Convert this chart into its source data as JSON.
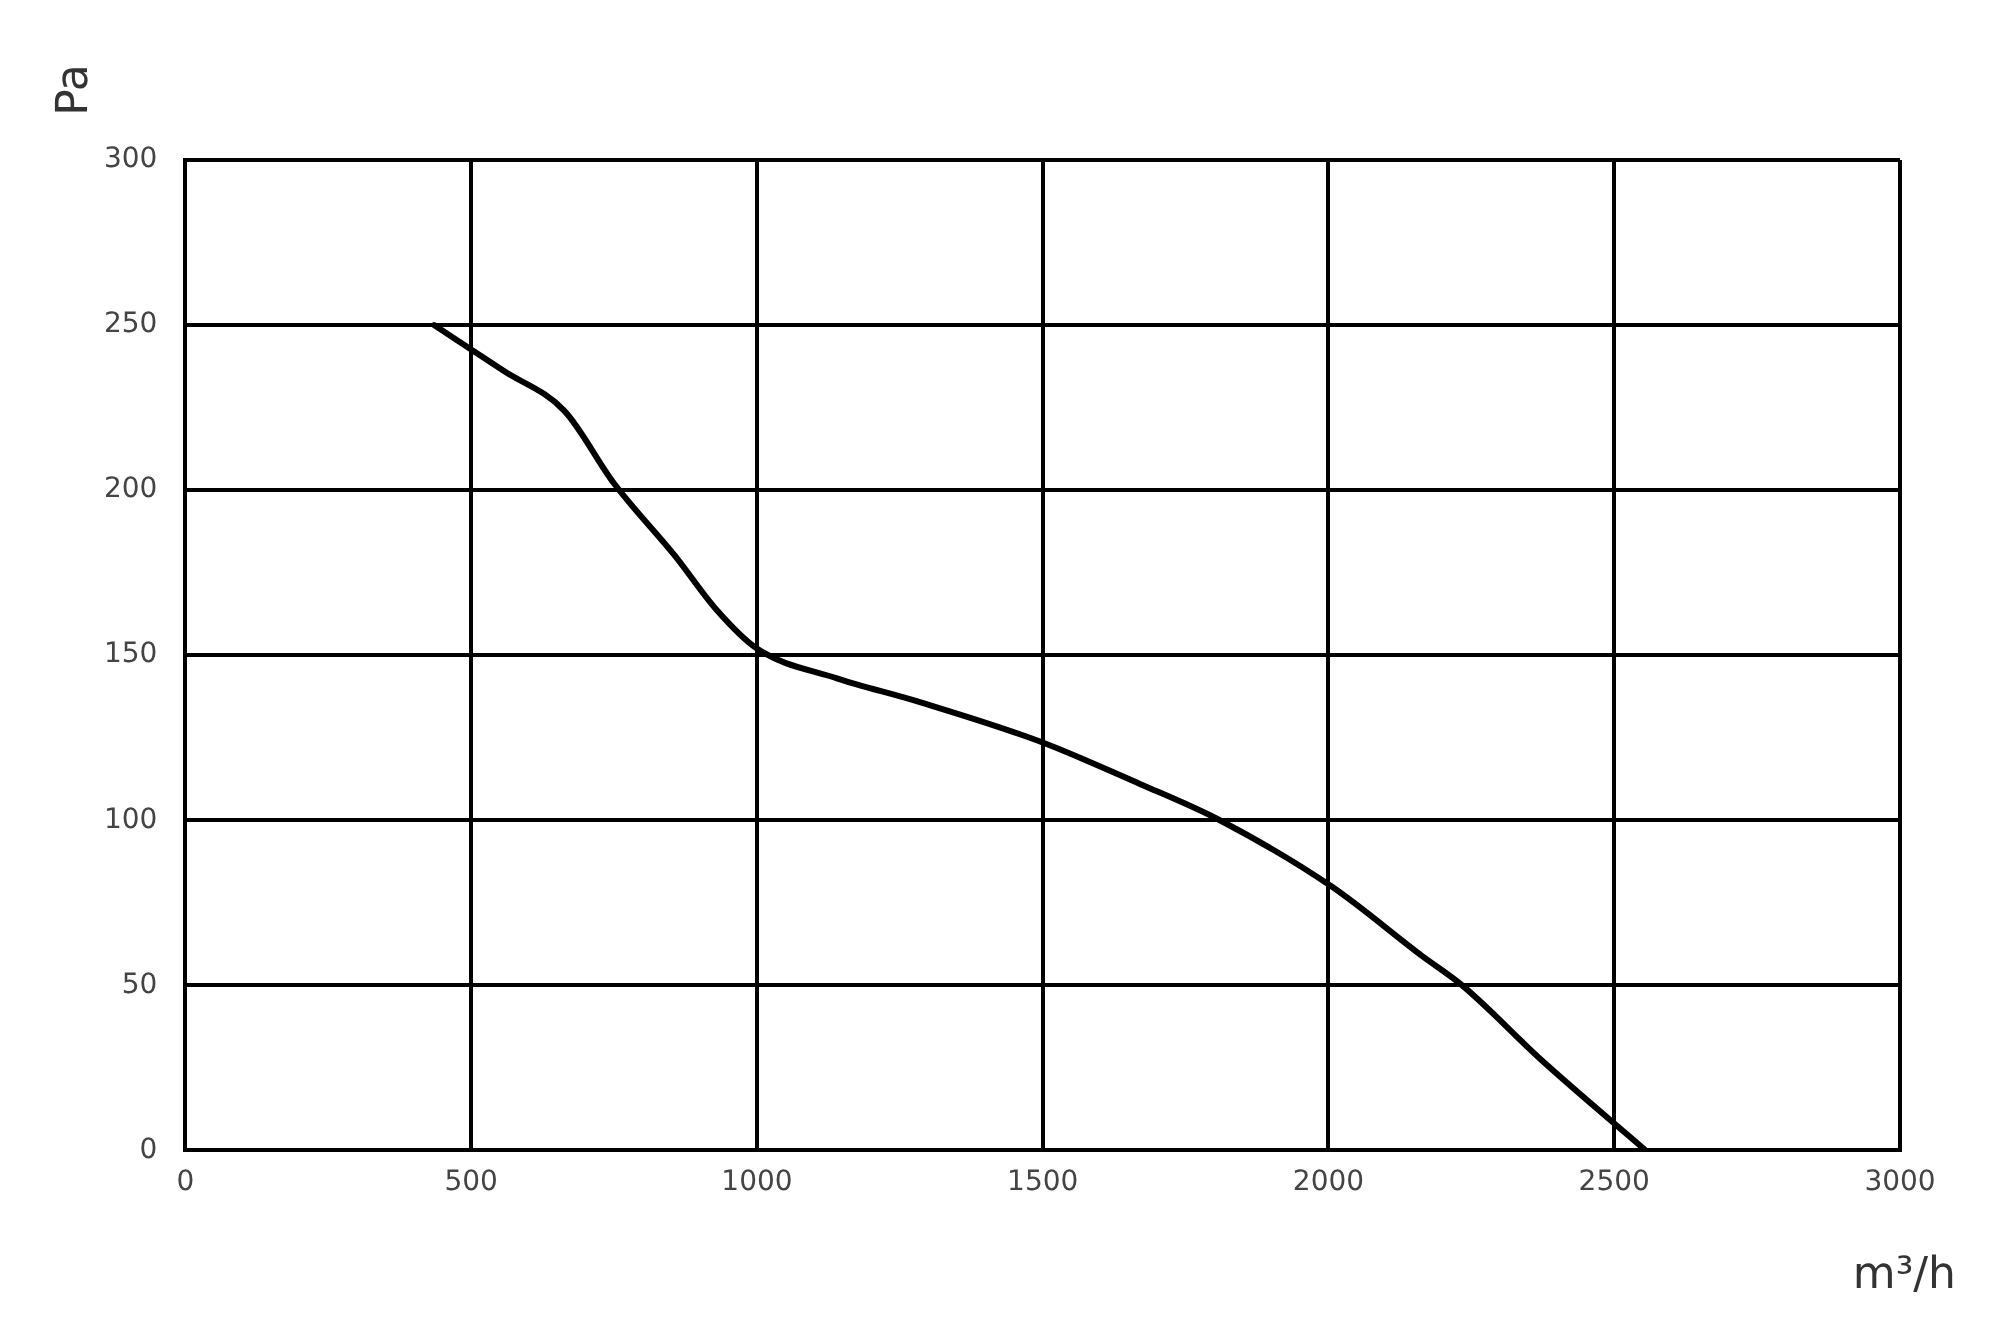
{
  "chart_data": {
    "type": "line",
    "xlabel": "m³/h",
    "ylabel": "Pa",
    "x": [
      435,
      558,
      663,
      750,
      857,
      928,
      1000,
      1140,
      1281,
      1493,
      1670,
      1810,
      2005,
      2163,
      2234,
      2375,
      2555
    ],
    "series": [
      {
        "color": "#000000",
        "values": [
          250,
          236,
          224,
          202,
          180,
          164,
          152,
          143,
          136,
          124,
          111,
          100,
          80,
          59,
          50,
          27,
          0
        ]
      }
    ],
    "xlim": [
      0,
      3000
    ],
    "xticks": [
      0,
      500,
      1000,
      1500,
      2000,
      2500,
      3000
    ],
    "ylim": [
      0,
      300
    ],
    "yticks": [
      0,
      50,
      100,
      150,
      200,
      250,
      300
    ],
    "grid": true,
    "legend": false,
    "marker": "none",
    "line_style": "solid"
  }
}
